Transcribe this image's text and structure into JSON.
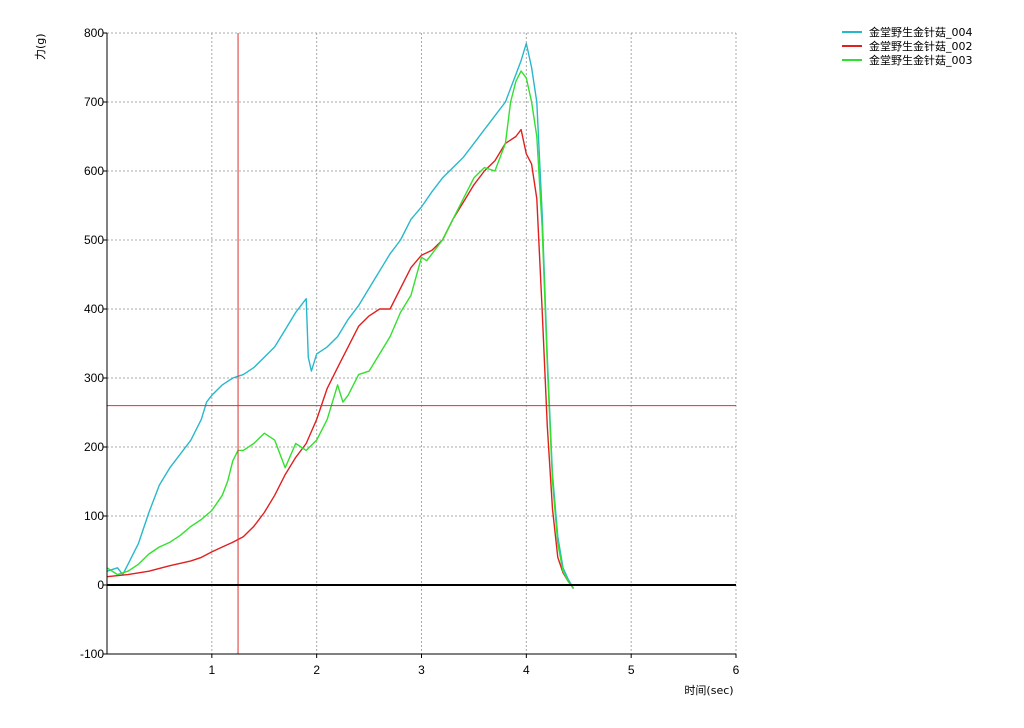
{
  "chart_data": {
    "type": "line",
    "xlabel": "时间(sec)",
    "ylabel": "力(g)",
    "xlim": [
      0,
      6
    ],
    "ylim": [
      -100,
      800
    ],
    "x_ticks": [
      1,
      2,
      3,
      4,
      5,
      6
    ],
    "y_ticks": [
      800,
      700,
      600,
      500,
      400,
      300,
      200,
      100,
      0,
      -100
    ],
    "grid": true,
    "legend_position": "top-right",
    "cursor": {
      "x": 1.25,
      "y": 260,
      "color": "#e03030"
    },
    "series": [
      {
        "name": "金堂野生金针菇_004",
        "color": "#28b8cc",
        "points": [
          [
            0,
            20
          ],
          [
            0.1,
            25
          ],
          [
            0.15,
            15
          ],
          [
            0.2,
            30
          ],
          [
            0.3,
            60
          ],
          [
            0.4,
            105
          ],
          [
            0.5,
            145
          ],
          [
            0.6,
            170
          ],
          [
            0.7,
            190
          ],
          [
            0.8,
            210
          ],
          [
            0.9,
            240
          ],
          [
            0.95,
            265
          ],
          [
            1.0,
            275
          ],
          [
            1.1,
            290
          ],
          [
            1.2,
            300
          ],
          [
            1.3,
            305
          ],
          [
            1.4,
            315
          ],
          [
            1.5,
            330
          ],
          [
            1.6,
            345
          ],
          [
            1.7,
            370
          ],
          [
            1.8,
            395
          ],
          [
            1.85,
            405
          ],
          [
            1.9,
            415
          ],
          [
            1.92,
            330
          ],
          [
            1.95,
            310
          ],
          [
            2.0,
            335
          ],
          [
            2.1,
            345
          ],
          [
            2.2,
            360
          ],
          [
            2.3,
            385
          ],
          [
            2.4,
            405
          ],
          [
            2.5,
            430
          ],
          [
            2.6,
            455
          ],
          [
            2.7,
            480
          ],
          [
            2.8,
            500
          ],
          [
            2.9,
            530
          ],
          [
            3.0,
            548
          ],
          [
            3.1,
            570
          ],
          [
            3.2,
            590
          ],
          [
            3.3,
            605
          ],
          [
            3.4,
            620
          ],
          [
            3.5,
            640
          ],
          [
            3.6,
            660
          ],
          [
            3.7,
            680
          ],
          [
            3.8,
            700
          ],
          [
            3.9,
            740
          ],
          [
            3.95,
            760
          ],
          [
            4.0,
            785
          ],
          [
            4.05,
            750
          ],
          [
            4.1,
            700
          ],
          [
            4.15,
            540
          ],
          [
            4.2,
            330
          ],
          [
            4.25,
            160
          ],
          [
            4.3,
            70
          ],
          [
            4.35,
            25
          ],
          [
            4.4,
            8
          ],
          [
            4.45,
            -5
          ]
        ]
      },
      {
        "name": "金堂野生金针菇_002",
        "color": "#e02020",
        "points": [
          [
            0,
            12
          ],
          [
            0.2,
            15
          ],
          [
            0.4,
            20
          ],
          [
            0.6,
            28
          ],
          [
            0.8,
            35
          ],
          [
            0.9,
            40
          ],
          [
            1.0,
            48
          ],
          [
            1.1,
            55
          ],
          [
            1.2,
            62
          ],
          [
            1.3,
            70
          ],
          [
            1.4,
            85
          ],
          [
            1.5,
            105
          ],
          [
            1.6,
            130
          ],
          [
            1.7,
            160
          ],
          [
            1.8,
            185
          ],
          [
            1.9,
            205
          ],
          [
            2.0,
            240
          ],
          [
            2.1,
            285
          ],
          [
            2.2,
            315
          ],
          [
            2.3,
            345
          ],
          [
            2.4,
            375
          ],
          [
            2.5,
            390
          ],
          [
            2.6,
            400
          ],
          [
            2.7,
            400
          ],
          [
            2.8,
            430
          ],
          [
            2.9,
            460
          ],
          [
            3.0,
            478
          ],
          [
            3.1,
            485
          ],
          [
            3.2,
            500
          ],
          [
            3.3,
            530
          ],
          [
            3.4,
            555
          ],
          [
            3.5,
            580
          ],
          [
            3.6,
            600
          ],
          [
            3.7,
            615
          ],
          [
            3.8,
            640
          ],
          [
            3.9,
            650
          ],
          [
            3.95,
            660
          ],
          [
            4.0,
            625
          ],
          [
            4.05,
            610
          ],
          [
            4.1,
            560
          ],
          [
            4.15,
            400
          ],
          [
            4.2,
            230
          ],
          [
            4.25,
            110
          ],
          [
            4.3,
            40
          ],
          [
            4.35,
            18
          ],
          [
            4.4,
            5
          ],
          [
            4.45,
            -5
          ]
        ]
      },
      {
        "name": "金堂野生金针菇_003",
        "color": "#33e02e",
        "points": [
          [
            0,
            25
          ],
          [
            0.1,
            15
          ],
          [
            0.2,
            20
          ],
          [
            0.3,
            30
          ],
          [
            0.4,
            45
          ],
          [
            0.5,
            55
          ],
          [
            0.6,
            62
          ],
          [
            0.7,
            72
          ],
          [
            0.8,
            85
          ],
          [
            0.9,
            95
          ],
          [
            1.0,
            108
          ],
          [
            1.1,
            130
          ],
          [
            1.15,
            150
          ],
          [
            1.2,
            180
          ],
          [
            1.25,
            195
          ],
          [
            1.3,
            195
          ],
          [
            1.4,
            205
          ],
          [
            1.5,
            220
          ],
          [
            1.6,
            210
          ],
          [
            1.7,
            170
          ],
          [
            1.8,
            205
          ],
          [
            1.9,
            195
          ],
          [
            2.0,
            210
          ],
          [
            2.1,
            240
          ],
          [
            2.2,
            290
          ],
          [
            2.25,
            265
          ],
          [
            2.3,
            275
          ],
          [
            2.4,
            305
          ],
          [
            2.5,
            310
          ],
          [
            2.6,
            335
          ],
          [
            2.7,
            360
          ],
          [
            2.8,
            395
          ],
          [
            2.9,
            420
          ],
          [
            3.0,
            475
          ],
          [
            3.05,
            470
          ],
          [
            3.1,
            480
          ],
          [
            3.2,
            500
          ],
          [
            3.3,
            530
          ],
          [
            3.4,
            560
          ],
          [
            3.5,
            590
          ],
          [
            3.6,
            605
          ],
          [
            3.7,
            600
          ],
          [
            3.8,
            640
          ],
          [
            3.85,
            700
          ],
          [
            3.9,
            730
          ],
          [
            3.95,
            745
          ],
          [
            4.0,
            735
          ],
          [
            4.05,
            700
          ],
          [
            4.1,
            650
          ],
          [
            4.15,
            520
          ],
          [
            4.2,
            320
          ],
          [
            4.25,
            150
          ],
          [
            4.3,
            60
          ],
          [
            4.35,
            20
          ],
          [
            4.4,
            5
          ],
          [
            4.45,
            -5
          ]
        ]
      }
    ]
  }
}
